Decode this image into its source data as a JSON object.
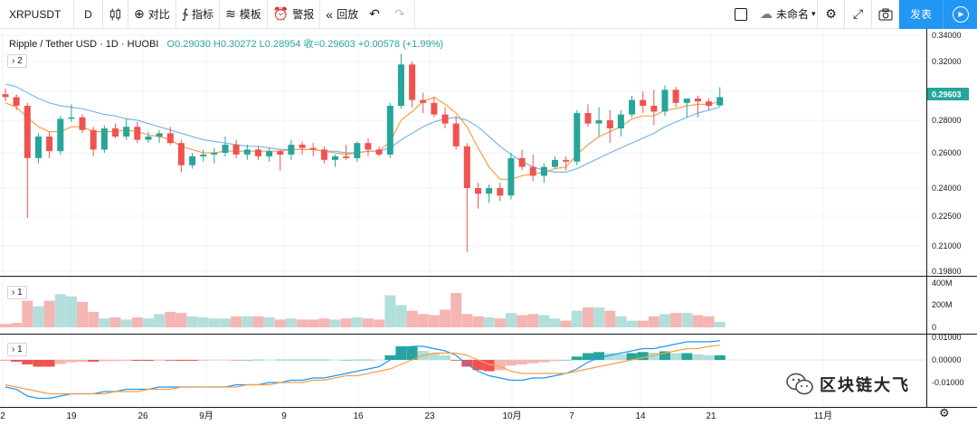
{
  "toolbar": {
    "symbol": "XRPUSDT",
    "resolution": "D",
    "compare_label": "对比",
    "indicators_label": "指标",
    "templates_label": "模板",
    "alert_label": "警报",
    "replay_label": "回放",
    "layout_name": "未命名",
    "publish_label": "发表"
  },
  "legend": {
    "title": "Ripple / Tether USD · 1D · HUOBI",
    "values": "O0.29030 H0.30272 L0.28954 收=0.29603 +0.00578 (+1.99%)"
  },
  "panes": {
    "main_btn": "› 2",
    "volume_btn": "› 1",
    "macd_btn": "› 1"
  },
  "price_axis": {
    "ticks": [
      "0.34000",
      "0.32000",
      "0.30000",
      "0.28000",
      "0.26000",
      "0.24000",
      "0.22500",
      "0.21000",
      "0.19800"
    ],
    "last_price": "0.29603"
  },
  "volume_axis": {
    "ticks": [
      "400M",
      "200M",
      "0"
    ]
  },
  "macd_axis": {
    "ticks": [
      "0.01000",
      "0.00000",
      "-0.01000"
    ]
  },
  "time_axis": {
    "labels": [
      "2",
      "19",
      "26",
      "9月",
      "9",
      "16",
      "23",
      "10月",
      "7",
      "14",
      "21",
      "11月"
    ]
  },
  "watermark": {
    "text": "区块链大飞"
  },
  "colors": {
    "up": "#26a69a",
    "down": "#ef5350",
    "accent": "#2196f3",
    "ma_blue": "#7ab8e8",
    "ma_orange": "#f5a04a"
  },
  "chart_data": {
    "type": "candlestick",
    "symbol": "Ripple / Tether USD",
    "interval": "1D",
    "exchange": "HUOBI",
    "ylim": [
      0.195,
      0.345
    ],
    "last": {
      "open": 0.2903,
      "high": 0.30272,
      "low": 0.28954,
      "close": 0.29603,
      "change": 0.00578,
      "change_pct": 1.99
    },
    "candles": [
      [
        0.298,
        0.302,
        0.293,
        0.296
      ],
      [
        0.296,
        0.298,
        0.287,
        0.29
      ],
      [
        0.29,
        0.292,
        0.224,
        0.257
      ],
      [
        0.257,
        0.272,
        0.254,
        0.27
      ],
      [
        0.27,
        0.273,
        0.257,
        0.261
      ],
      [
        0.261,
        0.283,
        0.259,
        0.281
      ],
      [
        0.281,
        0.291,
        0.279,
        0.282
      ],
      [
        0.282,
        0.284,
        0.272,
        0.274
      ],
      [
        0.274,
        0.276,
        0.258,
        0.262
      ],
      [
        0.262,
        0.277,
        0.26,
        0.275
      ],
      [
        0.275,
        0.278,
        0.269,
        0.27
      ],
      [
        0.27,
        0.281,
        0.268,
        0.276
      ],
      [
        0.276,
        0.279,
        0.266,
        0.268
      ],
      [
        0.268,
        0.273,
        0.266,
        0.27
      ],
      [
        0.27,
        0.274,
        0.266,
        0.272
      ],
      [
        0.272,
        0.276,
        0.265,
        0.266
      ],
      [
        0.266,
        0.268,
        0.249,
        0.253
      ],
      [
        0.253,
        0.26,
        0.251,
        0.258
      ],
      [
        0.258,
        0.262,
        0.255,
        0.259
      ],
      [
        0.259,
        0.263,
        0.254,
        0.26
      ],
      [
        0.26,
        0.27,
        0.258,
        0.265
      ],
      [
        0.265,
        0.268,
        0.257,
        0.259
      ],
      [
        0.259,
        0.265,
        0.256,
        0.262
      ],
      [
        0.262,
        0.264,
        0.256,
        0.258
      ],
      [
        0.258,
        0.263,
        0.255,
        0.261
      ],
      [
        0.261,
        0.262,
        0.25,
        0.259
      ],
      [
        0.259,
        0.268,
        0.256,
        0.265
      ],
      [
        0.265,
        0.267,
        0.259,
        0.263
      ],
      [
        0.263,
        0.266,
        0.258,
        0.262
      ],
      [
        0.262,
        0.264,
        0.254,
        0.256
      ],
      [
        0.256,
        0.259,
        0.252,
        0.258
      ],
      [
        0.258,
        0.265,
        0.256,
        0.257
      ],
      [
        0.257,
        0.267,
        0.255,
        0.266
      ],
      [
        0.266,
        0.269,
        0.258,
        0.262
      ],
      [
        0.262,
        0.264,
        0.258,
        0.259
      ],
      [
        0.259,
        0.292,
        0.257,
        0.29
      ],
      [
        0.29,
        0.326,
        0.288,
        0.318
      ],
      [
        0.318,
        0.32,
        0.289,
        0.294
      ],
      [
        0.294,
        0.299,
        0.285,
        0.292
      ],
      [
        0.292,
        0.296,
        0.282,
        0.284
      ],
      [
        0.284,
        0.289,
        0.275,
        0.278
      ],
      [
        0.278,
        0.283,
        0.262,
        0.264
      ],
      [
        0.264,
        0.266,
        0.207,
        0.24
      ],
      [
        0.24,
        0.243,
        0.229,
        0.237
      ],
      [
        0.237,
        0.242,
        0.232,
        0.24
      ],
      [
        0.24,
        0.243,
        0.233,
        0.236
      ],
      [
        0.236,
        0.26,
        0.234,
        0.257
      ],
      [
        0.257,
        0.262,
        0.25,
        0.252
      ],
      [
        0.252,
        0.259,
        0.244,
        0.247
      ],
      [
        0.247,
        0.254,
        0.243,
        0.252
      ],
      [
        0.252,
        0.258,
        0.251,
        0.256
      ],
      [
        0.256,
        0.258,
        0.25,
        0.255
      ],
      [
        0.255,
        0.287,
        0.253,
        0.285
      ],
      [
        0.285,
        0.291,
        0.276,
        0.278
      ],
      [
        0.278,
        0.289,
        0.27,
        0.28
      ],
      [
        0.28,
        0.287,
        0.266,
        0.275
      ],
      [
        0.275,
        0.287,
        0.27,
        0.284
      ],
      [
        0.284,
        0.297,
        0.282,
        0.294
      ],
      [
        0.294,
        0.3,
        0.285,
        0.29
      ],
      [
        0.29,
        0.301,
        0.277,
        0.286
      ],
      [
        0.286,
        0.304,
        0.283,
        0.301
      ],
      [
        0.301,
        0.303,
        0.289,
        0.292
      ],
      [
        0.292,
        0.295,
        0.282,
        0.295
      ],
      [
        0.295,
        0.297,
        0.282,
        0.293
      ],
      [
        0.293,
        0.295,
        0.287,
        0.29
      ],
      [
        0.2903,
        0.30272,
        0.28954,
        0.29603
      ]
    ],
    "ma_short": [
      0.292,
      0.289,
      0.282,
      0.276,
      0.273,
      0.273,
      0.276,
      0.276,
      0.273,
      0.273,
      0.273,
      0.274,
      0.273,
      0.271,
      0.27,
      0.268,
      0.264,
      0.262,
      0.26,
      0.26,
      0.261,
      0.261,
      0.261,
      0.261,
      0.261,
      0.261,
      0.262,
      0.262,
      0.262,
      0.261,
      0.26,
      0.259,
      0.26,
      0.261,
      0.261,
      0.267,
      0.28,
      0.286,
      0.293,
      0.296,
      0.291,
      0.285,
      0.276,
      0.263,
      0.252,
      0.245,
      0.245,
      0.247,
      0.248,
      0.249,
      0.251,
      0.252,
      0.259,
      0.265,
      0.27,
      0.273,
      0.276,
      0.281,
      0.283,
      0.283,
      0.287,
      0.288,
      0.29,
      0.291,
      0.291,
      0.293
    ],
    "ma_long": [
      0.305,
      0.303,
      0.299,
      0.295,
      0.292,
      0.29,
      0.289,
      0.288,
      0.286,
      0.284,
      0.283,
      0.281,
      0.28,
      0.278,
      0.276,
      0.274,
      0.272,
      0.27,
      0.268,
      0.267,
      0.266,
      0.265,
      0.264,
      0.264,
      0.263,
      0.262,
      0.262,
      0.262,
      0.262,
      0.261,
      0.261,
      0.26,
      0.26,
      0.261,
      0.261,
      0.263,
      0.268,
      0.272,
      0.276,
      0.279,
      0.281,
      0.282,
      0.28,
      0.276,
      0.27,
      0.264,
      0.259,
      0.255,
      0.252,
      0.25,
      0.249,
      0.249,
      0.251,
      0.254,
      0.257,
      0.26,
      0.263,
      0.266,
      0.269,
      0.272,
      0.276,
      0.279,
      0.282,
      0.285,
      0.287,
      0.289
    ],
    "volume": [
      30,
      40,
      240,
      190,
      240,
      300,
      280,
      230,
      140,
      80,
      90,
      70,
      90,
      80,
      120,
      140,
      130,
      100,
      90,
      80,
      80,
      100,
      100,
      100,
      90,
      70,
      80,
      70,
      70,
      80,
      70,
      80,
      90,
      80,
      70,
      290,
      200,
      150,
      120,
      110,
      160,
      310,
      120,
      100,
      90,
      80,
      130,
      110,
      120,
      110,
      80,
      60,
      150,
      180,
      180,
      150,
      100,
      60,
      60,
      100,
      120,
      130,
      130,
      110,
      100,
      50
    ],
    "volume_ylim": [
      0,
      400
    ],
    "macd_hist": [
      -0.0002,
      -0.0008,
      -0.002,
      -0.003,
      -0.003,
      -0.0018,
      -0.001,
      -0.0008,
      -0.0008,
      -0.0006,
      -0.0005,
      -0.0004,
      -0.0004,
      -0.0004,
      -0.0003,
      -0.0003,
      -0.0004,
      -0.0004,
      -0.0003,
      -0.0002,
      -0.0001,
      -0.0001,
      0.0,
      0.0001,
      0.0,
      0.0001,
      0.0001,
      0.0001,
      0.0001,
      0.0001,
      0.0,
      0.0,
      0.0001,
      0.0001,
      0.0,
      0.002,
      0.006,
      0.006,
      0.004,
      0.003,
      0.002,
      -0.0003,
      -0.003,
      -0.0045,
      -0.005,
      -0.0045,
      -0.0025,
      -0.002,
      -0.0015,
      -0.001,
      -0.0005,
      0.0,
      0.0015,
      0.003,
      0.0035,
      0.003,
      0.0025,
      0.003,
      0.0035,
      0.0032,
      0.0038,
      0.003,
      0.003,
      0.0025,
      0.002,
      0.002
    ],
    "macd_line": [
      -0.012,
      -0.013,
      -0.016,
      -0.017,
      -0.017,
      -0.016,
      -0.015,
      -0.015,
      -0.015,
      -0.014,
      -0.014,
      -0.013,
      -0.013,
      -0.013,
      -0.012,
      -0.012,
      -0.012,
      -0.012,
      -0.012,
      -0.012,
      -0.012,
      -0.011,
      -0.011,
      -0.011,
      -0.01,
      -0.01,
      -0.009,
      -0.009,
      -0.008,
      -0.008,
      -0.007,
      -0.006,
      -0.005,
      -0.004,
      -0.003,
      0.0,
      0.004,
      0.006,
      0.006,
      0.005,
      0.004,
      0.002,
      -0.002,
      -0.005,
      -0.007,
      -0.008,
      -0.009,
      -0.009,
      -0.008,
      -0.008,
      -0.007,
      -0.006,
      -0.004,
      -0.001,
      0.001,
      0.002,
      0.003,
      0.004,
      0.005,
      0.005,
      0.006,
      0.007,
      0.008,
      0.008,
      0.008,
      0.0085
    ],
    "signal_line": [
      -0.011,
      -0.012,
      -0.013,
      -0.014,
      -0.015,
      -0.015,
      -0.015,
      -0.015,
      -0.015,
      -0.015,
      -0.014,
      -0.014,
      -0.014,
      -0.013,
      -0.013,
      -0.013,
      -0.012,
      -0.012,
      -0.012,
      -0.012,
      -0.012,
      -0.012,
      -0.011,
      -0.011,
      -0.011,
      -0.01,
      -0.01,
      -0.01,
      -0.009,
      -0.009,
      -0.008,
      -0.007,
      -0.007,
      -0.006,
      -0.005,
      -0.004,
      -0.002,
      0.0,
      0.002,
      0.003,
      0.003,
      0.003,
      0.002,
      0.0,
      -0.002,
      -0.003,
      -0.005,
      -0.006,
      -0.006,
      -0.006,
      -0.006,
      -0.006,
      -0.005,
      -0.004,
      -0.003,
      -0.002,
      -0.001,
      0.0,
      0.001,
      0.002,
      0.003,
      0.004,
      0.005,
      0.005,
      0.006,
      0.0065
    ],
    "macd_ylim": [
      -0.018,
      0.011
    ]
  }
}
